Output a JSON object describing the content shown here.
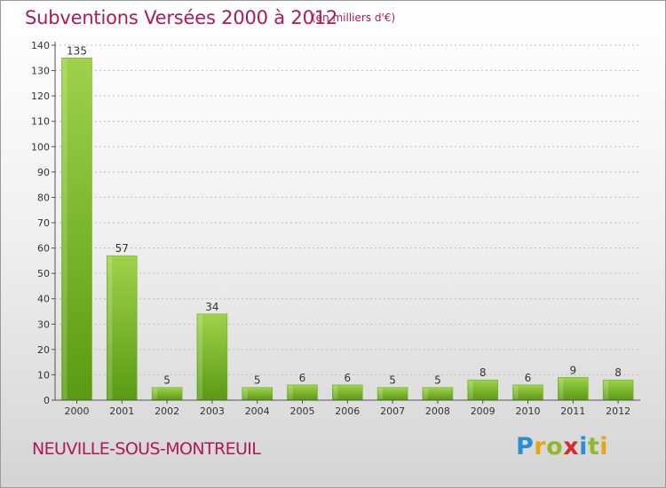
{
  "header": {
    "title": "Subventions Versées 2000 à 2012",
    "unit_note": "(en milliers d'€)"
  },
  "footer": {
    "commune": "NEUVILLE-SOUS-MONTREUIL",
    "logo_text": "Proxiti",
    "logo_letters": [
      "P",
      "r",
      "o",
      "x",
      "i",
      "t",
      "i"
    ],
    "logo_colors": [
      "#2a8fd0",
      "#e8a317",
      "#8fb82a",
      "#d62c2c",
      "#2a8fd0",
      "#8fb82a",
      "#e8a317"
    ]
  },
  "colors": {
    "title": "#b0185c",
    "bar_light": "#9ed24a",
    "bar_dark": "#5a9a12",
    "axis": "#555555",
    "grid": "#bdbdbd"
  },
  "chart_data": {
    "type": "bar",
    "categories": [
      "2000",
      "2001",
      "2002",
      "2003",
      "2004",
      "2005",
      "2006",
      "2007",
      "2008",
      "2009",
      "2010",
      "2011",
      "2012"
    ],
    "values": [
      135,
      57,
      5,
      34,
      5,
      6,
      6,
      5,
      5,
      8,
      6,
      9,
      8
    ],
    "title": "Subventions Versées 2000 à 2012",
    "subtitle": "(en milliers d'€)",
    "xlabel": "",
    "ylabel": "",
    "ylim": [
      0,
      140
    ],
    "yticks": [
      0,
      10,
      20,
      30,
      40,
      50,
      60,
      70,
      80,
      90,
      100,
      110,
      120,
      130,
      140
    ],
    "grid": true,
    "data_labels": true
  }
}
